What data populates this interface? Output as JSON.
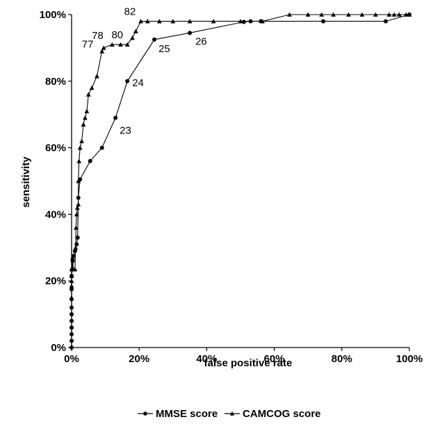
{
  "chart_data": {
    "type": "line",
    "title": "",
    "xlabel": "false positive rate",
    "ylabel": "sensitivity",
    "xlim": [
      0,
      1
    ],
    "ylim": [
      0,
      1
    ],
    "x_ticks": [
      "0%",
      "20%",
      "40%",
      "60%",
      "80%",
      "100%"
    ],
    "y_ticks": [
      "0%",
      "20%",
      "40%",
      "60%",
      "80%",
      "100%"
    ],
    "grid": false,
    "legend_position": "bottom",
    "series": [
      {
        "name": "MMSE score",
        "marker": "circle",
        "color": "#000000",
        "x": [
          0,
          0,
          0,
          0,
          0,
          0,
          0,
          0,
          0,
          0,
          0.002,
          0.003,
          0.005,
          0.01,
          0.015,
          0.018,
          0.02,
          0.025,
          0.055,
          0.09,
          0.13,
          0.165,
          0.245,
          0.35,
          0.51,
          0.53,
          0.56,
          0.745,
          0.93,
          1.0
        ],
        "y": [
          0,
          0.02,
          0.04,
          0.06,
          0.08,
          0.1,
          0.12,
          0.145,
          0.175,
          0.215,
          0.235,
          0.26,
          0.275,
          0.29,
          0.31,
          0.33,
          0.45,
          0.505,
          0.56,
          0.6,
          0.69,
          0.8,
          0.925,
          0.945,
          0.978,
          0.98,
          0.98,
          0.98,
          0.98,
          1.0
        ]
      },
      {
        "name": "CAMCOG score",
        "marker": "triangle",
        "color": "#000000",
        "x": [
          0,
          0,
          0,
          0,
          0,
          0.003,
          0.005,
          0.01,
          0.012,
          0.013,
          0.015,
          0.017,
          0.02,
          0.02,
          0.022,
          0.025,
          0.03,
          0.035,
          0.04,
          0.045,
          0.05,
          0.06,
          0.075,
          0.09,
          0.095,
          0.12,
          0.145,
          0.165,
          0.18,
          0.19,
          0.205,
          0.225,
          0.26,
          0.3,
          0.35,
          0.42,
          0.5,
          0.565,
          0.645,
          0.7,
          0.74,
          0.775,
          0.82,
          0.86,
          0.9,
          0.94,
          0.955,
          0.97,
          0.99,
          1.0
        ],
        "y": [
          0.15,
          0.185,
          0.2,
          0.215,
          0.235,
          0.27,
          0.235,
          0.235,
          0.3,
          0.36,
          0.4,
          0.42,
          0.43,
          0.5,
          0.56,
          0.6,
          0.62,
          0.67,
          0.69,
          0.71,
          0.76,
          0.78,
          0.815,
          0.89,
          0.9,
          0.91,
          0.91,
          0.91,
          0.93,
          0.95,
          0.98,
          0.98,
          0.98,
          0.98,
          0.98,
          0.98,
          0.98,
          0.98,
          1.0,
          1.0,
          1.0,
          1.0,
          1.0,
          1.0,
          1.0,
          1.0,
          1.0,
          1.0,
          1.0,
          1.0
        ]
      }
    ],
    "annotations": [
      {
        "text": "77",
        "series": "CAMCOG score",
        "x": 0.09,
        "y": 0.89
      },
      {
        "text": "78",
        "series": "CAMCOG score",
        "x": 0.095,
        "y": 0.9
      },
      {
        "text": "80",
        "series": "CAMCOG score",
        "x": 0.145,
        "y": 0.91
      },
      {
        "text": "82",
        "series": "CAMCOG score",
        "x": 0.205,
        "y": 0.98
      },
      {
        "text": "23",
        "series": "MMSE score",
        "x": 0.13,
        "y": 0.69
      },
      {
        "text": "24",
        "series": "MMSE score",
        "x": 0.165,
        "y": 0.8
      },
      {
        "text": "25",
        "series": "MMSE score",
        "x": 0.245,
        "y": 0.925
      },
      {
        "text": "26",
        "series": "MMSE score",
        "x": 0.35,
        "y": 0.945
      }
    ]
  }
}
